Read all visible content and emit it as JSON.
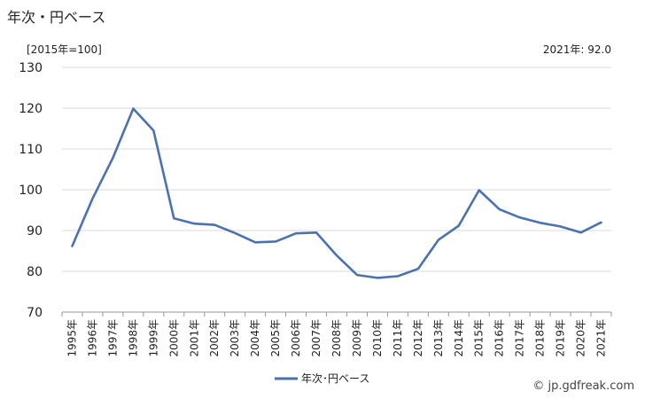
{
  "header": {
    "title": "年次・円ベース",
    "unit": "[2015年=100]",
    "latest": "2021年: 92.0"
  },
  "source": "© jp.gdfreak.com",
  "chart_data": {
    "type": "line",
    "title": "年次・円ベース",
    "xlabel": "",
    "ylabel": "",
    "ylim": [
      70,
      130
    ],
    "yticks": [
      70,
      80,
      90,
      100,
      110,
      120,
      130
    ],
    "grid": true,
    "legend": "bottom-center",
    "categories": [
      "1995年",
      "1996年",
      "1997年",
      "1998年",
      "1999年",
      "2000年",
      "2001年",
      "2002年",
      "2003年",
      "2004年",
      "2005年",
      "2006年",
      "2007年",
      "2008年",
      "2009年",
      "2010年",
      "2011年",
      "2012年",
      "2013年",
      "2014年",
      "2015年",
      "2016年",
      "2017年",
      "2018年",
      "2019年",
      "2020年",
      "2021年"
    ],
    "series": [
      {
        "name": "年次･円ベース",
        "color": "#4a72b0",
        "values": [
          86.2,
          97.8,
          107.8,
          119.9,
          114.5,
          93.0,
          91.7,
          91.4,
          89.4,
          87.1,
          87.3,
          89.3,
          89.5,
          83.9,
          79.1,
          78.4,
          78.8,
          80.6,
          87.7,
          91.2,
          99.9,
          95.2,
          93.2,
          91.9,
          91.0,
          89.5,
          92.0
        ]
      }
    ]
  }
}
